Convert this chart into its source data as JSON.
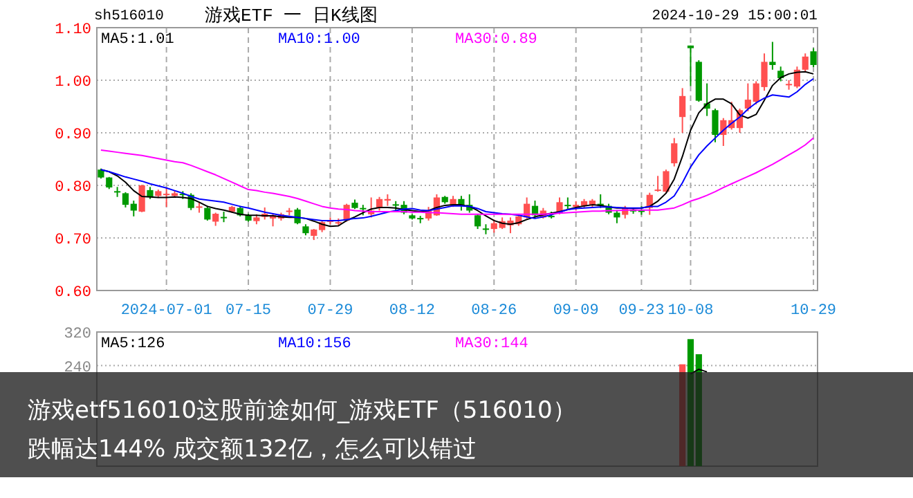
{
  "chart_data": [
    {
      "type": "candlestick",
      "title": "游戏ETF 一 日K线图",
      "annotations": [
        "sh516010",
        "2024-10-29 15:00:01"
      ],
      "categories": [
        null,
        null,
        null,
        null,
        null,
        null,
        null,
        null,
        "2024-07-01",
        null,
        null,
        null,
        null,
        null,
        null,
        null,
        null,
        null,
        "07-15",
        null,
        null,
        null,
        null,
        null,
        null,
        null,
        null,
        null,
        "07-29",
        null,
        null,
        null,
        null,
        null,
        null,
        null,
        null,
        null,
        "08-12",
        null,
        null,
        null,
        null,
        null,
        null,
        null,
        null,
        null,
        "08-26",
        null,
        null,
        null,
        null,
        null,
        null,
        null,
        null,
        null,
        "09-09",
        null,
        null,
        null,
        null,
        null,
        null,
        null,
        "09-23",
        null,
        null,
        null,
        null,
        null,
        "10-08",
        null,
        null,
        null,
        null,
        null,
        null,
        null,
        null,
        null,
        null,
        null,
        null,
        null,
        null,
        "10-29"
      ],
      "ohlc": [
        [
          0.83,
          0.832,
          0.813,
          0.815
        ],
        [
          0.815,
          0.816,
          0.793,
          0.796
        ],
        [
          0.789,
          0.797,
          0.778,
          0.788
        ],
        [
          0.785,
          0.787,
          0.758,
          0.763
        ],
        [
          0.765,
          0.771,
          0.741,
          0.752
        ],
        [
          0.75,
          0.801,
          0.749,
          0.8
        ],
        [
          0.791,
          0.797,
          0.774,
          0.778
        ],
        [
          0.78,
          0.792,
          0.776,
          0.789
        ],
        [
          0.783,
          0.796,
          0.759,
          0.784
        ],
        [
          0.78,
          0.79,
          0.777,
          0.785
        ],
        [
          0.784,
          0.789,
          0.774,
          0.782
        ],
        [
          0.782,
          0.785,
          0.753,
          0.757
        ],
        [
          0.758,
          0.768,
          0.748,
          0.76
        ],
        [
          0.757,
          0.761,
          0.733,
          0.735
        ],
        [
          0.731,
          0.748,
          0.723,
          0.746
        ],
        [
          0.74,
          0.75,
          0.73,
          0.739
        ],
        [
          0.75,
          0.761,
          0.748,
          0.759
        ],
        [
          0.757,
          0.761,
          0.741,
          0.743
        ],
        [
          0.743,
          0.746,
          0.731,
          0.733
        ],
        [
          0.732,
          0.745,
          0.726,
          0.739
        ],
        [
          0.74,
          0.758,
          0.735,
          0.746
        ],
        [
          0.737,
          0.746,
          0.722,
          0.743
        ],
        [
          0.737,
          0.748,
          0.733,
          0.745
        ],
        [
          0.75,
          0.757,
          0.743,
          0.752
        ],
        [
          0.754,
          0.757,
          0.726,
          0.728
        ],
        [
          0.722,
          0.726,
          0.705,
          0.709
        ],
        [
          0.704,
          0.717,
          0.696,
          0.716
        ],
        [
          0.715,
          0.733,
          0.711,
          0.73
        ],
        [
          0.732,
          0.739,
          0.726,
          0.733
        ],
        [
          0.729,
          0.737,
          0.724,
          0.73
        ],
        [
          0.733,
          0.765,
          0.731,
          0.763
        ],
        [
          0.767,
          0.773,
          0.755,
          0.757
        ],
        [
          0.757,
          0.763,
          0.743,
          0.755
        ],
        [
          0.745,
          0.777,
          0.739,
          0.752
        ],
        [
          0.757,
          0.778,
          0.752,
          0.774
        ],
        [
          0.771,
          0.783,
          0.761,
          0.774
        ],
        [
          0.764,
          0.77,
          0.752,
          0.762
        ],
        [
          0.763,
          0.77,
          0.745,
          0.748
        ],
        [
          0.743,
          0.745,
          0.735,
          0.737
        ],
        [
          0.738,
          0.742,
          0.728,
          0.737
        ],
        [
          0.737,
          0.759,
          0.733,
          0.752
        ],
        [
          0.743,
          0.783,
          0.742,
          0.777
        ],
        [
          0.778,
          0.78,
          0.765,
          0.768
        ],
        [
          0.761,
          0.78,
          0.759,
          0.774
        ],
        [
          0.774,
          0.78,
          0.752,
          0.763
        ],
        [
          0.763,
          0.783,
          0.748,
          0.752
        ],
        [
          0.743,
          0.745,
          0.717,
          0.722
        ],
        [
          0.718,
          0.726,
          0.707,
          0.717
        ],
        [
          0.717,
          0.735,
          0.71,
          0.728
        ],
        [
          0.719,
          0.739,
          0.717,
          0.732
        ],
        [
          0.724,
          0.739,
          0.709,
          0.733
        ],
        [
          0.726,
          0.742,
          0.723,
          0.741
        ],
        [
          0.739,
          0.777,
          0.737,
          0.765
        ],
        [
          0.761,
          0.771,
          0.737,
          0.743
        ],
        [
          0.739,
          0.757,
          0.737,
          0.752
        ],
        [
          0.742,
          0.75,
          0.737,
          0.741
        ],
        [
          0.748,
          0.777,
          0.745,
          0.768
        ],
        [
          0.763,
          0.777,
          0.755,
          0.762
        ],
        [
          0.759,
          0.77,
          0.752,
          0.763
        ],
        [
          0.761,
          0.774,
          0.757,
          0.77
        ],
        [
          0.763,
          0.774,
          0.759,
          0.771
        ],
        [
          0.765,
          0.783,
          0.757,
          0.761
        ],
        [
          0.761,
          0.765,
          0.745,
          0.748
        ],
        [
          0.748,
          0.753,
          0.728,
          0.739
        ],
        [
          0.744,
          0.761,
          0.737,
          0.757
        ],
        [
          0.753,
          0.757,
          0.746,
          0.752
        ],
        [
          0.752,
          0.76,
          0.744,
          0.75
        ],
        [
          0.757,
          0.786,
          0.744,
          0.782
        ],
        [
          0.79,
          0.818,
          0.788,
          0.792
        ],
        [
          0.788,
          0.83,
          0.786,
          0.827
        ],
        [
          0.842,
          0.89,
          0.836,
          0.88
        ],
        [
          0.93,
          0.985,
          0.9,
          0.97
        ],
        [
          1.066,
          1.066,
          0.989,
          1.061
        ],
        [
          1.035,
          1.038,
          0.959,
          0.961
        ],
        [
          0.956,
          0.994,
          0.932,
          0.946
        ],
        [
          0.943,
          0.946,
          0.882,
          0.896
        ],
        [
          0.896,
          0.928,
          0.875,
          0.924
        ],
        [
          0.909,
          0.959,
          0.906,
          0.924
        ],
        [
          0.909,
          0.946,
          0.9,
          0.943
        ],
        [
          0.946,
          0.994,
          0.941,
          0.963
        ],
        [
          0.959,
          0.998,
          0.954,
          0.994
        ],
        [
          0.987,
          1.051,
          0.98,
          1.035
        ],
        [
          1.035,
          1.073,
          1.02,
          1.029
        ],
        [
          1.018,
          1.026,
          0.998,
          1.004
        ],
        [
          0.991,
          1.0,
          0.982,
          0.993
        ],
        [
          0.988,
          1.026,
          0.985,
          1.02
        ],
        [
          1.02,
          1.051,
          1.016,
          1.045
        ],
        [
          1.055,
          1.061,
          1.025,
          1.029
        ]
      ],
      "colors": [
        "#009900",
        "#009900",
        "#009900",
        "#009900",
        "#009900",
        "#ff5050",
        "#009900",
        "#ff5050",
        "#ff5050",
        "#ff5050",
        "#009900",
        "#009900",
        "#ff5050",
        "#009900",
        "#ff5050",
        "#009900",
        "#ff5050",
        "#009900",
        "#009900",
        "#ff5050",
        "#ff5050",
        "#ff5050",
        "#ff5050",
        "#ff5050",
        "#009900",
        "#009900",
        "#ff5050",
        "#ff5050",
        "#ff5050",
        "#ff5050",
        "#ff5050",
        "#009900",
        "#009900",
        "#ff5050",
        "#ff5050",
        "#ff5050",
        "#009900",
        "#009900",
        "#009900",
        "#009900",
        "#ff5050",
        "#ff5050",
        "#009900",
        "#ff5050",
        "#009900",
        "#009900",
        "#009900",
        "#009900",
        "#ff5050",
        "#ff5050",
        "#ff5050",
        "#ff5050",
        "#ff5050",
        "#009900",
        "#ff5050",
        "#009900",
        "#ff5050",
        "#009900",
        "#ff5050",
        "#ff5050",
        "#ff5050",
        "#009900",
        "#009900",
        "#009900",
        "#ff5050",
        "#009900",
        "#009900",
        "#ff5050",
        "#ff5050",
        "#ff5050",
        "#ff5050",
        "#ff5050",
        "#009900",
        "#009900",
        "#009900",
        "#009900",
        "#ff5050",
        "#ff5050",
        "#ff5050",
        "#ff5050",
        "#ff5050",
        "#ff5050",
        "#009900",
        "#009900",
        "#ff5050",
        "#ff5050",
        "#ff5050",
        "#009900"
      ],
      "series": [
        {
          "name": "MA5:1.01",
          "type": "line",
          "color": "#000000",
          "values": [
            0.83,
            0.826,
            0.818,
            0.806,
            0.79,
            0.779,
            0.778,
            0.777,
            0.777,
            0.778,
            0.777,
            0.775,
            0.768,
            0.76,
            0.756,
            0.753,
            0.749,
            0.745,
            0.743,
            0.743,
            0.742,
            0.742,
            0.74,
            0.739,
            0.739,
            0.737,
            0.732,
            0.726,
            0.722,
            0.723,
            0.733,
            0.74,
            0.748,
            0.755,
            0.758,
            0.758,
            0.757,
            0.754,
            0.752,
            0.75,
            0.752,
            0.758,
            0.762,
            0.763,
            0.763,
            0.76,
            0.752,
            0.742,
            0.733,
            0.728,
            0.726,
            0.729,
            0.735,
            0.74,
            0.744,
            0.747,
            0.75,
            0.754,
            0.758,
            0.761,
            0.763,
            0.762,
            0.759,
            0.757,
            0.757,
            0.756,
            0.757,
            0.76,
            0.77,
            0.785,
            0.812,
            0.855,
            0.905,
            0.938,
            0.955,
            0.964,
            0.964,
            0.955,
            0.934,
            0.928,
            0.935,
            0.962,
            0.99,
            1.005,
            1.012,
            1.015,
            1.016,
            1.012
          ]
        },
        {
          "name": "MA10:1.00",
          "type": "line",
          "color": "#0000ff",
          "values": [
            0.83,
            0.826,
            0.821,
            0.816,
            0.812,
            0.808,
            0.803,
            0.799,
            0.795,
            0.79,
            0.785,
            0.779,
            0.774,
            0.772,
            0.77,
            0.768,
            0.764,
            0.76,
            0.757,
            0.753,
            0.749,
            0.746,
            0.743,
            0.741,
            0.739,
            0.737,
            0.735,
            0.733,
            0.733,
            0.733,
            0.735,
            0.737,
            0.738,
            0.741,
            0.745,
            0.749,
            0.752,
            0.755,
            0.756,
            0.753,
            0.752,
            0.755,
            0.758,
            0.761,
            0.761,
            0.76,
            0.756,
            0.75,
            0.748,
            0.746,
            0.745,
            0.743,
            0.74,
            0.737,
            0.74,
            0.744,
            0.749,
            0.754,
            0.756,
            0.757,
            0.758,
            0.759,
            0.759,
            0.758,
            0.757,
            0.757,
            0.757,
            0.76,
            0.76,
            0.768,
            0.78,
            0.805,
            0.835,
            0.858,
            0.875,
            0.89,
            0.905,
            0.918,
            0.93,
            0.945,
            0.957,
            0.966,
            0.972,
            0.97,
            0.968,
            0.978,
            0.992,
            1.003
          ]
        },
        {
          "name": "MA30:0.89",
          "type": "line",
          "color": "#ff00ff",
          "values": [
            0.867,
            0.865,
            0.863,
            0.861,
            0.859,
            0.857,
            0.854,
            0.851,
            0.848,
            0.845,
            0.843,
            0.838,
            0.832,
            0.826,
            0.82,
            0.813,
            0.806,
            0.799,
            0.792,
            0.79,
            0.787,
            0.785,
            0.782,
            0.779,
            0.775,
            0.77,
            0.765,
            0.76,
            0.757,
            0.755,
            0.754,
            0.752,
            0.751,
            0.75,
            0.75,
            0.75,
            0.75,
            0.75,
            0.749,
            0.749,
            0.748,
            0.748,
            0.747,
            0.746,
            0.745,
            0.745,
            0.745,
            0.745,
            0.745,
            0.745,
            0.745,
            0.745,
            0.745,
            0.745,
            0.745,
            0.746,
            0.747,
            0.748,
            0.749,
            0.75,
            0.751,
            0.751,
            0.752,
            0.752,
            0.753,
            0.753,
            0.753,
            0.753,
            0.753,
            0.755,
            0.757,
            0.763,
            0.77,
            0.775,
            0.781,
            0.788,
            0.796,
            0.803,
            0.81,
            0.817,
            0.824,
            0.832,
            0.84,
            0.849,
            0.858,
            0.867,
            0.877,
            0.89
          ]
        }
      ],
      "ylim": [
        0.6,
        1.1
      ],
      "yticks": [
        {
          "value": 0.6,
          "label": "0.60"
        },
        {
          "value": 0.7,
          "label": "0.70"
        },
        {
          "value": 0.8,
          "label": "0.80"
        },
        {
          "value": 0.9,
          "label": "0.90"
        },
        {
          "value": 1.0,
          "label": "1.00"
        },
        {
          "value": 1.1,
          "label": "1.10"
        }
      ],
      "grid": true,
      "legend": "top"
    },
    {
      "type": "bar",
      "annotations": [
        "游戏etf516010这股前途如何_游戏ETF（516010）",
        "跌幅达144% 成交额132亿，怎么可以错过"
      ],
      "categories": [
        null,
        null,
        null,
        null,
        null,
        null,
        null,
        null,
        null,
        null,
        null,
        null,
        null,
        null,
        null,
        null,
        null,
        null,
        null,
        null,
        null,
        null,
        null,
        null,
        null,
        null,
        null,
        null,
        null,
        null,
        null,
        null,
        null,
        null,
        null,
        null,
        null,
        null,
        null,
        null,
        null,
        null,
        null,
        null,
        null,
        null,
        null,
        null,
        null,
        null,
        null,
        null,
        null,
        null,
        null,
        null,
        null,
        null,
        null,
        null,
        null,
        null,
        null,
        null,
        null,
        null,
        null,
        null,
        null,
        null,
        null,
        null,
        null,
        null,
        null,
        null,
        null,
        null,
        null,
        null,
        null,
        null,
        null,
        null,
        null,
        null,
        null,
        null
      ],
      "values": [
        null,
        null,
        null,
        null,
        null,
        null,
        null,
        null,
        null,
        null,
        null,
        null,
        null,
        null,
        null,
        null,
        null,
        null,
        null,
        null,
        null,
        null,
        null,
        null,
        null,
        null,
        null,
        null,
        null,
        null,
        null,
        null,
        null,
        null,
        null,
        null,
        null,
        null,
        null,
        null,
        null,
        null,
        null,
        null,
        null,
        null,
        null,
        null,
        null,
        null,
        null,
        null,
        null,
        null,
        null,
        null,
        null,
        null,
        null,
        null,
        null,
        null,
        null,
        null,
        null,
        null,
        null,
        null,
        null,
        null,
        null,
        243,
        303,
        267,
        null,
        null,
        null,
        null,
        null,
        null,
        null,
        null,
        null,
        null,
        null,
        null,
        null,
        null
      ],
      "colors": [
        null,
        null,
        null,
        null,
        null,
        null,
        null,
        null,
        null,
        null,
        null,
        null,
        null,
        null,
        null,
        null,
        null,
        null,
        null,
        null,
        null,
        null,
        null,
        null,
        null,
        null,
        null,
        null,
        null,
        null,
        null,
        null,
        null,
        null,
        null,
        null,
        null,
        null,
        null,
        null,
        null,
        null,
        null,
        null,
        null,
        null,
        null,
        null,
        null,
        null,
        null,
        null,
        null,
        null,
        null,
        null,
        null,
        null,
        null,
        null,
        null,
        null,
        null,
        null,
        null,
        null,
        null,
        null,
        null,
        null,
        null,
        "#ff5050",
        "#009900",
        "#009900",
        null,
        null,
        null,
        null,
        null,
        null,
        null,
        null,
        null,
        null,
        null,
        null,
        null,
        null
      ],
      "series": [
        {
          "name": "MA5:126",
          "type": "line",
          "color": "#000000",
          "values": [
            null,
            null,
            null,
            null,
            null,
            null,
            null,
            null,
            null,
            null,
            null,
            null,
            null,
            null,
            null,
            null,
            null,
            null,
            null,
            null,
            null,
            null,
            null,
            null,
            null,
            null,
            null,
            null,
            null,
            null,
            null,
            null,
            null,
            null,
            null,
            null,
            null,
            null,
            null,
            null,
            null,
            null,
            null,
            null,
            null,
            null,
            null,
            null,
            null,
            null,
            null,
            null,
            null,
            null,
            null,
            null,
            null,
            null,
            null,
            null,
            null,
            null,
            null,
            null,
            null,
            null,
            null,
            null,
            null,
            null,
            null,
            null,
            220,
            231,
            225,
            null,
            null,
            null,
            null,
            null,
            null,
            null,
            null,
            null,
            null,
            null,
            null,
            null
          ]
        },
        {
          "name": "MA10:156",
          "type": "line",
          "color": "#0000ff",
          "values": [
            null,
            null,
            null,
            null,
            null,
            null,
            null,
            null,
            null,
            null,
            null,
            null,
            null,
            null,
            null,
            null,
            null,
            null,
            null,
            null,
            null,
            null,
            null,
            null,
            null,
            null,
            null,
            null,
            null,
            null,
            null,
            null,
            null,
            null,
            null,
            null,
            null,
            null,
            null,
            null,
            null,
            null,
            null,
            null,
            null,
            null,
            null,
            null,
            null,
            null,
            null,
            null,
            null,
            null,
            null,
            null,
            null,
            null,
            null,
            null,
            null,
            null,
            null,
            null,
            null,
            null,
            null,
            null,
            null,
            null,
            null,
            null,
            null,
            null,
            null,
            null,
            null,
            null,
            null,
            null,
            null,
            null,
            null,
            null,
            null,
            null,
            null,
            null
          ]
        },
        {
          "name": "MA30:144",
          "type": "line",
          "color": "#ff00ff",
          "values": [
            null,
            null,
            null,
            null,
            null,
            null,
            null,
            null,
            null,
            null,
            null,
            null,
            null,
            null,
            null,
            null,
            null,
            null,
            null,
            null,
            null,
            null,
            null,
            null,
            null,
            null,
            null,
            null,
            null,
            null,
            null,
            null,
            null,
            null,
            null,
            null,
            null,
            null,
            null,
            null,
            null,
            null,
            null,
            null,
            null,
            null,
            null,
            null,
            null,
            null,
            null,
            null,
            null,
            null,
            null,
            null,
            null,
            null,
            null,
            null,
            null,
            null,
            null,
            null,
            null,
            null,
            null,
            null,
            null,
            null,
            null,
            null,
            null,
            null,
            null,
            null,
            null,
            null,
            null,
            null,
            null,
            null,
            null,
            null,
            null,
            null,
            null,
            null
          ]
        }
      ],
      "ylim": [
        0,
        320
      ],
      "yticks": [
        240,
        320
      ],
      "grid": true,
      "legend": "top",
      "tick_labels": "y"
    }
  ]
}
